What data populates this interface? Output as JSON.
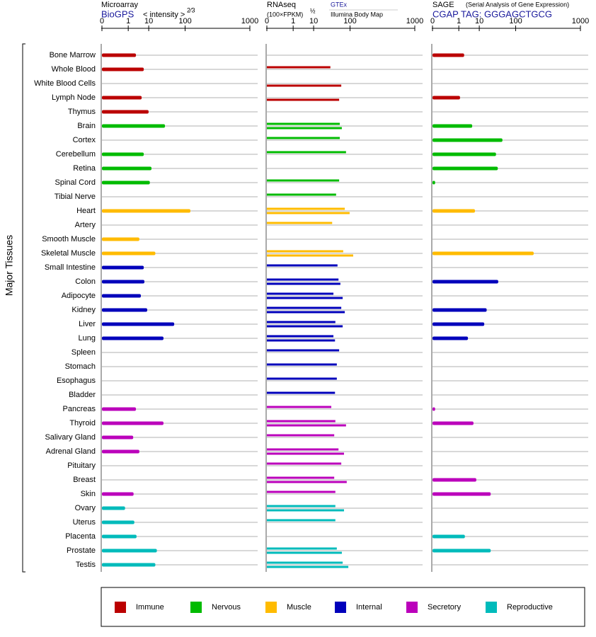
{
  "chart_data": {
    "type": "multi-panel-bar",
    "y_label": "Major Tissues",
    "groups": [
      {
        "name": "Immune",
        "color": "#bb0000",
        "categories": [
          "Bone Marrow",
          "Whole Blood",
          "White Blood Cells",
          "Lymph Node",
          "Thymus"
        ]
      },
      {
        "name": "Nervous",
        "color": "#00bb00",
        "categories": [
          "Brain",
          "Cortex",
          "Cerebellum",
          "Retina",
          "Spinal Cord",
          "Tibial Nerve"
        ]
      },
      {
        "name": "Muscle",
        "color": "#ffbb00",
        "categories": [
          "Heart",
          "Artery",
          "Smooth Muscle",
          "Skeletal Muscle"
        ]
      },
      {
        "name": "Internal",
        "color": "#0000bb",
        "categories": [
          "Small Intestine",
          "Colon",
          "Adipocyte",
          "Kidney",
          "Liver",
          "Lung",
          "Spleen",
          "Stomach",
          "Esophagus",
          "Bladder"
        ]
      },
      {
        "name": "Secretory",
        "color": "#bb00bb",
        "categories": [
          "Pancreas",
          "Thyroid",
          "Salivary Gland",
          "Adrenal Gland",
          "Pituitary",
          "Breast",
          "Skin"
        ]
      },
      {
        "name": "Reproductive",
        "color": "#00bbbb",
        "categories": [
          "Ovary",
          "Uterus",
          "Placenta",
          "Prostate",
          "Testis"
        ]
      }
    ],
    "panels": [
      {
        "title": "Microarray",
        "scale_label": "< intensity >",
        "scale_exponent": "2⁄3",
        "xlim": [
          0,
          1000
        ],
        "xticks": [
          0,
          1,
          10,
          100,
          1000
        ],
        "series": [
          {
            "name": "BioGPS",
            "values": [
              2.8,
              6.4,
              null,
              5.2,
              9.9,
              33,
              null,
              6.4,
              12.6,
              11,
              null,
              128,
              null,
              4.1,
              17,
              6.4,
              6.8,
              4.8,
              8.8,
              57,
              30,
              null,
              null,
              null,
              null,
              2.8,
              30,
              2.0,
              4.1,
              null,
              null,
              2.1,
              0.6,
              2.3,
              3.0,
              19,
              17
            ]
          }
        ]
      },
      {
        "title": "RNAseq",
        "scale_label": "(100×FPKM)",
        "scale_exponent": "½",
        "xlim": [
          0,
          1000
        ],
        "xticks": [
          0,
          1,
          10,
          100,
          1000
        ],
        "series": [
          {
            "name": "GTEx",
            "values": [
              null,
              34,
              null,
              null,
              null,
              59,
              59,
              82,
              null,
              57,
              48,
              77,
              38,
              null,
              71,
              52,
              55,
              41,
              64,
              46,
              41,
              57,
              50,
              50,
              45,
              36,
              46,
              43,
              55,
              64,
              43,
              46,
              46,
              46,
              null,
              50,
              69
            ]
          },
          {
            "name": "Illumina Body Map",
            "values": [
              null,
              null,
              64,
              57,
              null,
              66,
              null,
              null,
              null,
              null,
              null,
              98,
              null,
              null,
              116,
              null,
              61,
              69,
              77,
              69,
              45,
              null,
              null,
              null,
              null,
              null,
              82,
              null,
              74,
              null,
              85,
              null,
              74,
              null,
              null,
              66,
              92
            ]
          }
        ]
      },
      {
        "title": "SAGE",
        "subtitle": "(Serial Analysis of Gene Expression)",
        "xlim": [
          0,
          1000
        ],
        "xticks": [
          0,
          1,
          10,
          100,
          1000
        ],
        "series": [
          {
            "name": "CGAP TAG: GGGAGCTGCG",
            "values": [
              2.1,
              null,
              null,
              1.2,
              null,
              5.2,
              50,
              34,
              38,
              0.0001,
              null,
              6.8,
              null,
              null,
              219,
              null,
              39,
              null,
              18,
              15,
              3.3,
              null,
              null,
              null,
              null,
              0.0001,
              5.9,
              null,
              null,
              null,
              7.7,
              24,
              null,
              null,
              2.3,
              24,
              null
            ]
          }
        ]
      }
    ]
  }
}
